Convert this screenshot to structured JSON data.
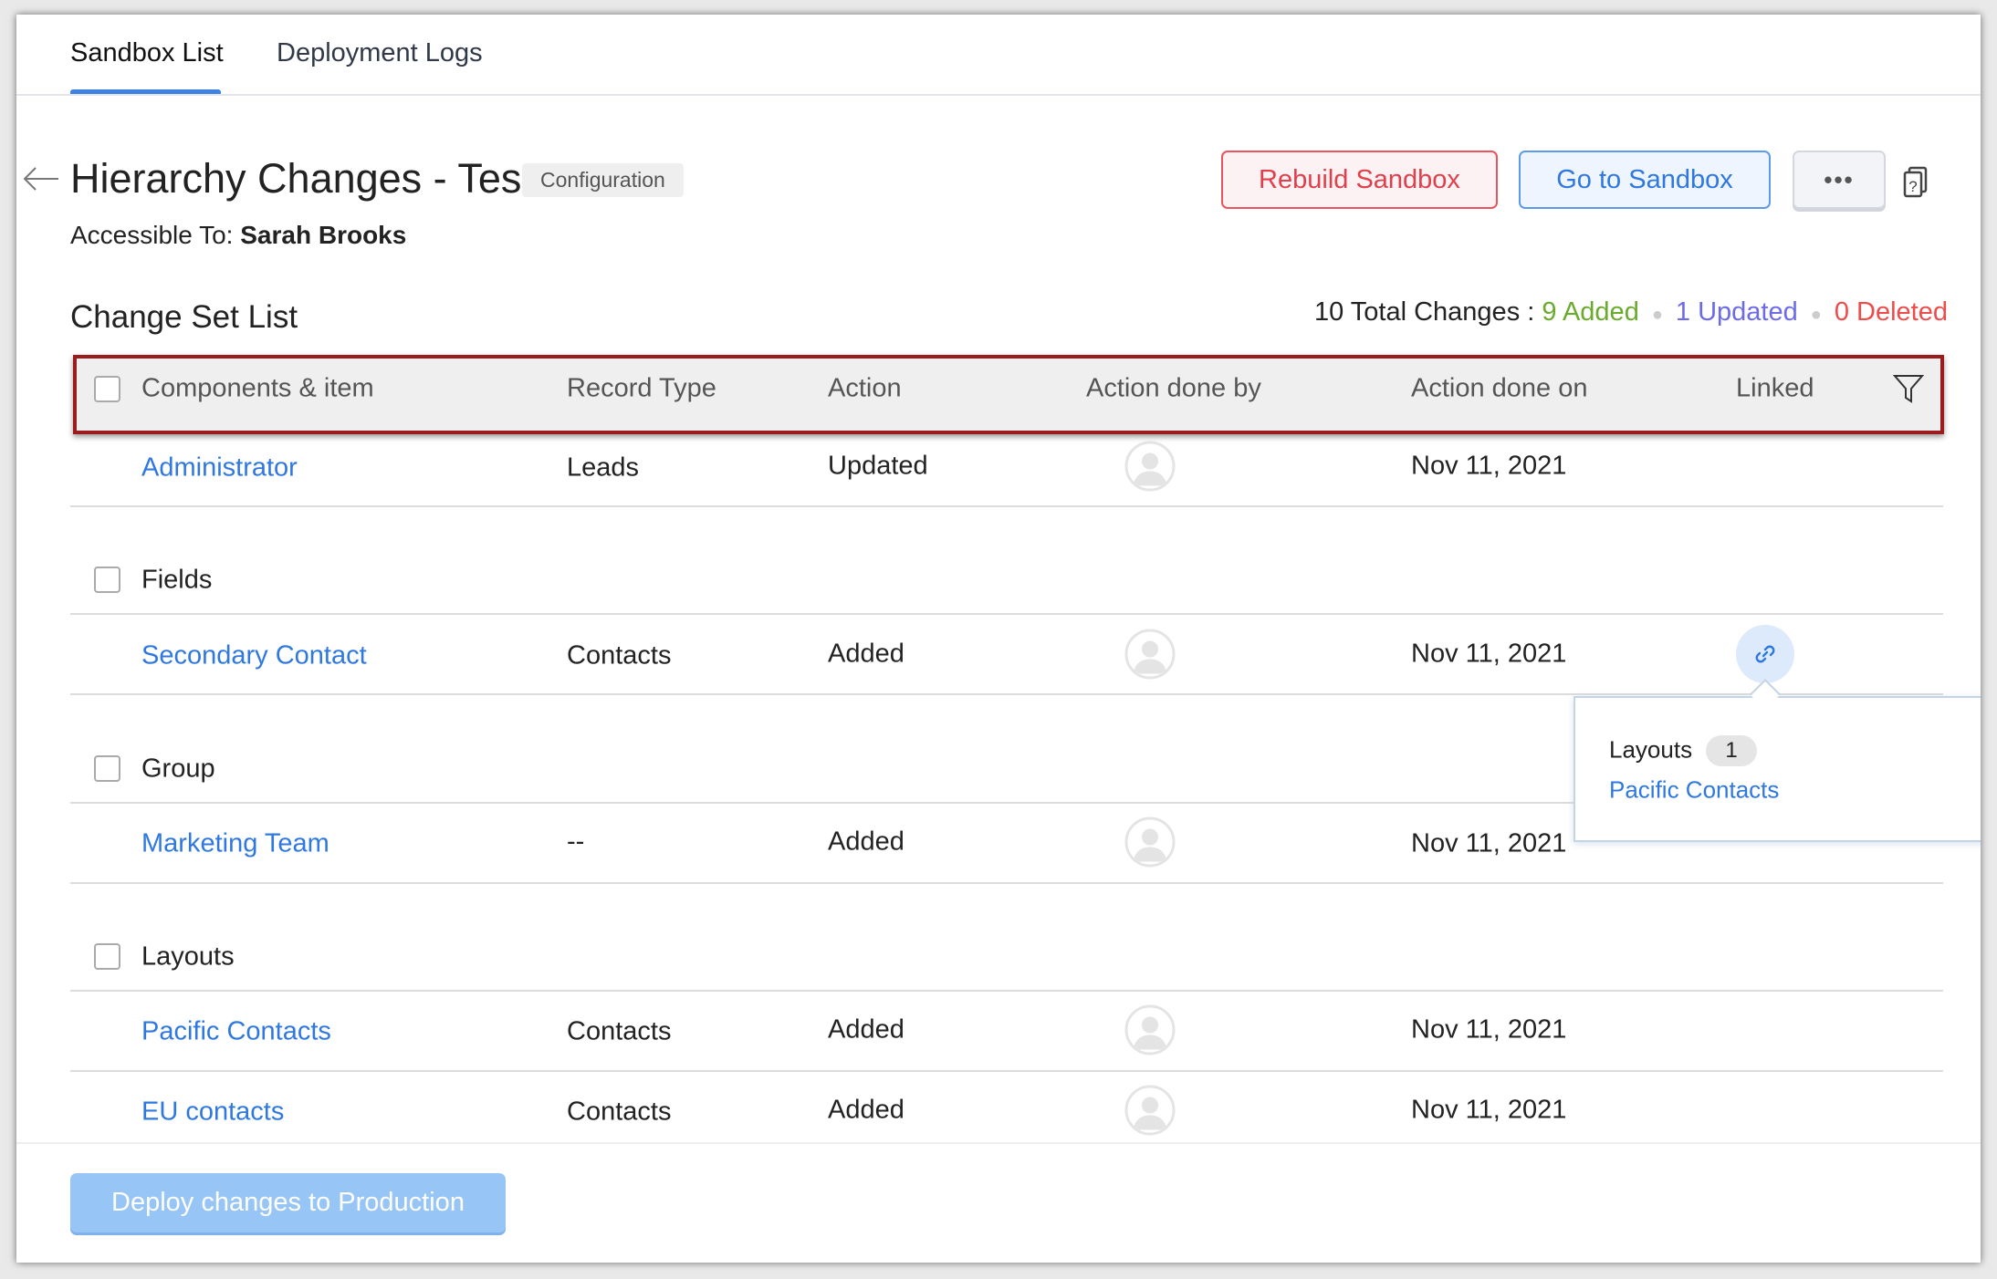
{
  "tabs": [
    {
      "label": "Sandbox List",
      "active": true
    },
    {
      "label": "Deployment Logs",
      "active": false
    }
  ],
  "header": {
    "title": "Hierarchy Changes - Test",
    "badge": "Configuration",
    "accessible_label": "Accessible To:",
    "accessible_user": "Sarah Brooks"
  },
  "actions": {
    "rebuild": "Rebuild Sandbox",
    "goto": "Go to Sandbox",
    "more": "•••"
  },
  "changeset": {
    "title": "Change Set List",
    "total": "10 Total Changes :",
    "added": "9 Added",
    "updated": "1 Updated",
    "deleted": "0 Deleted"
  },
  "colors": {
    "added": "#6aab2e",
    "updated": "#6b6bea",
    "deleted": "#ee4b4b",
    "accent": "#2f78e0",
    "highlight_border": "#9b1c1c"
  },
  "columns": [
    "Components & item",
    "Record Type",
    "Action",
    "Action done by",
    "Action done on",
    "Linked"
  ],
  "groups": [
    {
      "label": "Fields"
    },
    {
      "label": "Group"
    },
    {
      "label": "Layouts"
    }
  ],
  "rows": [
    {
      "item": "Administrator",
      "record_type": "Leads",
      "action": "Updated",
      "date": "Nov 11, 2021",
      "linked": false
    },
    {
      "item": "Secondary Contact",
      "record_type": "Contacts",
      "action": "Added",
      "date": "Nov 11, 2021",
      "linked": true
    },
    {
      "item": "Marketing Team",
      "record_type": "--",
      "action": "Added",
      "date": "Nov 11, 2021",
      "linked": false
    },
    {
      "item": "Pacific Contacts",
      "record_type": "Contacts",
      "action": "Added",
      "date": "Nov 11, 2021",
      "linked": false
    },
    {
      "item": "EU contacts",
      "record_type": "Contacts",
      "action": "Added",
      "date": "Nov 11, 2021",
      "linked": false
    }
  ],
  "popover": {
    "label": "Layouts",
    "count": "1",
    "link": "Pacific Contacts"
  },
  "footer": {
    "deploy": "Deploy changes to Production"
  }
}
